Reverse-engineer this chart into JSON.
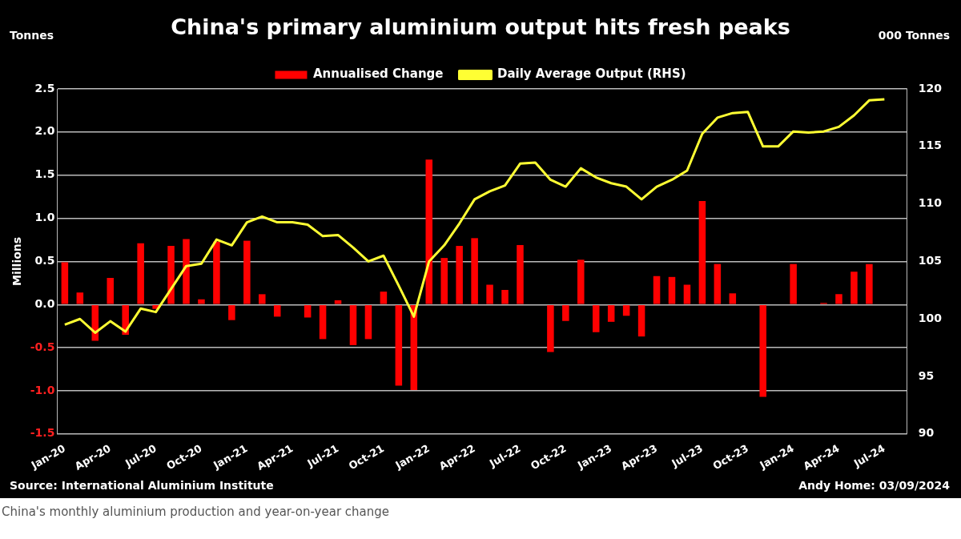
{
  "chart_data": {
    "type": "bar",
    "title": "China's primary aluminium output hits fresh peaks",
    "ylabel": "Millions",
    "y2label": "000 Tonnes",
    "annotations": [
      "Tonnes",
      "Source: International Aluminium Institute",
      "Andy Home: 03/09/2024",
      "China's monthly aluminium production and year-on-year change"
    ],
    "categories": [
      "Jan-20",
      null,
      null,
      "Apr-20",
      null,
      null,
      "Jul-20",
      null,
      null,
      "Oct-20",
      null,
      null,
      "Jan-21",
      null,
      null,
      "Apr-21",
      null,
      null,
      "Jul-21",
      null,
      null,
      "Oct-21",
      null,
      null,
      "Jan-22",
      null,
      null,
      "Apr-22",
      null,
      null,
      "Jul-22",
      null,
      null,
      "Oct-22",
      null,
      null,
      "Jan-23",
      null,
      null,
      "Apr-23",
      null,
      null,
      "Jul-23",
      null,
      null,
      "Oct-23",
      null,
      null,
      "Jan-24",
      null,
      null,
      "Apr-24",
      null,
      null,
      "Jul-24",
      null
    ],
    "series": [
      {
        "name": "Annualised Change",
        "color": "#ff0000",
        "values": [
          0.49,
          0.14,
          -0.42,
          0.31,
          -0.35,
          0.71,
          -0.05,
          0.68,
          0.76,
          0.06,
          0.73,
          -0.18,
          0.74,
          0.12,
          -0.14,
          null,
          -0.15,
          -0.4,
          0.05,
          -0.47,
          -0.4,
          0.15,
          -0.94,
          -0.99,
          1.68,
          0.54,
          0.68,
          0.77,
          0.23,
          0.17,
          0.69,
          null,
          -0.55,
          -0.19,
          0.52,
          -0.32,
          -0.2,
          -0.13,
          -0.37,
          0.33,
          0.32,
          0.23,
          1.2,
          0.47,
          0.13,
          null,
          -1.07,
          null,
          0.47,
          null,
          0.02,
          0.12,
          0.38,
          0.47,
          null,
          null
        ]
      },
      {
        "name": "Daily Average Output (RHS)",
        "type": "line",
        "axis": "y2",
        "color": "#ffff33",
        "values": [
          99.5,
          100.0,
          98.8,
          99.8,
          98.9,
          100.9,
          100.6,
          102.6,
          104.6,
          104.8,
          106.9,
          106.4,
          108.4,
          108.9,
          108.4,
          108.4,
          108.2,
          107.2,
          107.3,
          106.2,
          105.0,
          105.5,
          102.9,
          100.2,
          105.0,
          106.4,
          108.3,
          110.4,
          111.1,
          111.6,
          113.5,
          113.6,
          112.1,
          111.5,
          113.1,
          112.3,
          111.8,
          111.5,
          110.4,
          111.5,
          112.1,
          112.9,
          116.1,
          117.5,
          117.9,
          118.0,
          115.0,
          115.0,
          116.3,
          116.2,
          116.3,
          116.7,
          117.7,
          119.0,
          119.1,
          null
        ]
      }
    ],
    "ylim": [
      -1.5,
      2.5
    ],
    "yticks": [
      {
        "value": -1.5,
        "label": "-1.5"
      },
      {
        "value": -1,
        "label": "-1.0"
      },
      {
        "value": -0.5,
        "label": "-0.5"
      },
      {
        "value": 0,
        "label": "0.0"
      },
      {
        "value": 0.5,
        "label": "0.5"
      },
      {
        "value": 1,
        "label": "1.0"
      },
      {
        "value": 1.5,
        "label": "1.5"
      },
      {
        "value": 2,
        "label": "2.0"
      },
      {
        "value": 2.5,
        "label": "2.5"
      }
    ],
    "y2lim": [
      90,
      120
    ],
    "y2ticks": [
      90,
      95,
      100,
      105,
      110,
      115,
      120
    ],
    "grid": "y",
    "legend": "top",
    "marker": "none",
    "line_style": "solid"
  }
}
